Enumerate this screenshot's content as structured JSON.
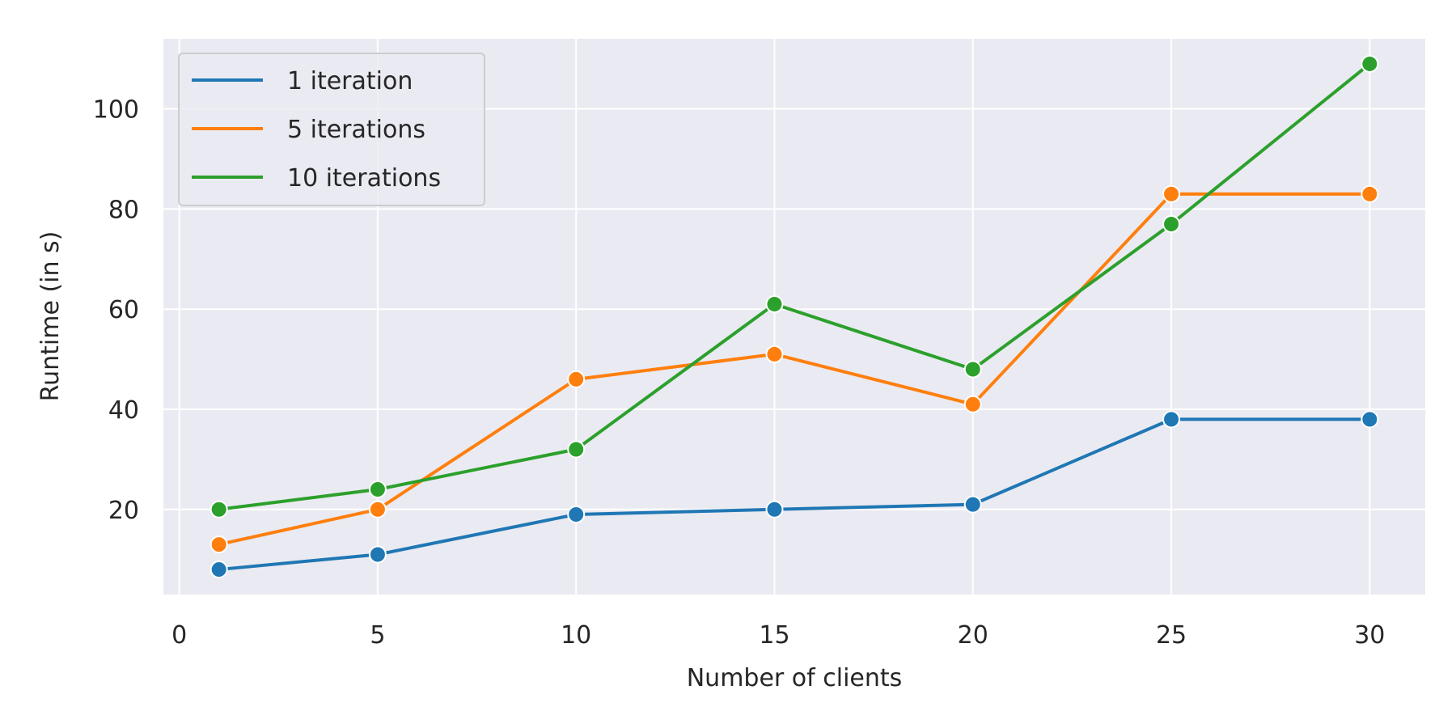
{
  "chart_data": {
    "type": "line",
    "title": "",
    "xlabel": "Number of clients",
    "ylabel": "Runtime (in s)",
    "x": [
      1,
      5,
      10,
      15,
      20,
      25,
      30
    ],
    "xlim": [
      -0.4,
      31.4
    ],
    "ylim": [
      3,
      114
    ],
    "xticks": [
      0,
      5,
      10,
      15,
      20,
      25,
      30
    ],
    "yticks": [
      20,
      40,
      60,
      80,
      100
    ],
    "grid": true,
    "legend_position": "top-left",
    "series": [
      {
        "name": "1 iteration",
        "color": "#1f77b4",
        "values": [
          8,
          11,
          19,
          20,
          21,
          38,
          38
        ]
      },
      {
        "name": "5 iterations",
        "color": "#ff7f0e",
        "values": [
          13,
          20,
          46,
          51,
          41,
          83,
          83
        ]
      },
      {
        "name": "10 iterations",
        "color": "#2ca02c",
        "values": [
          20,
          24,
          32,
          61,
          48,
          77,
          109
        ]
      }
    ]
  }
}
